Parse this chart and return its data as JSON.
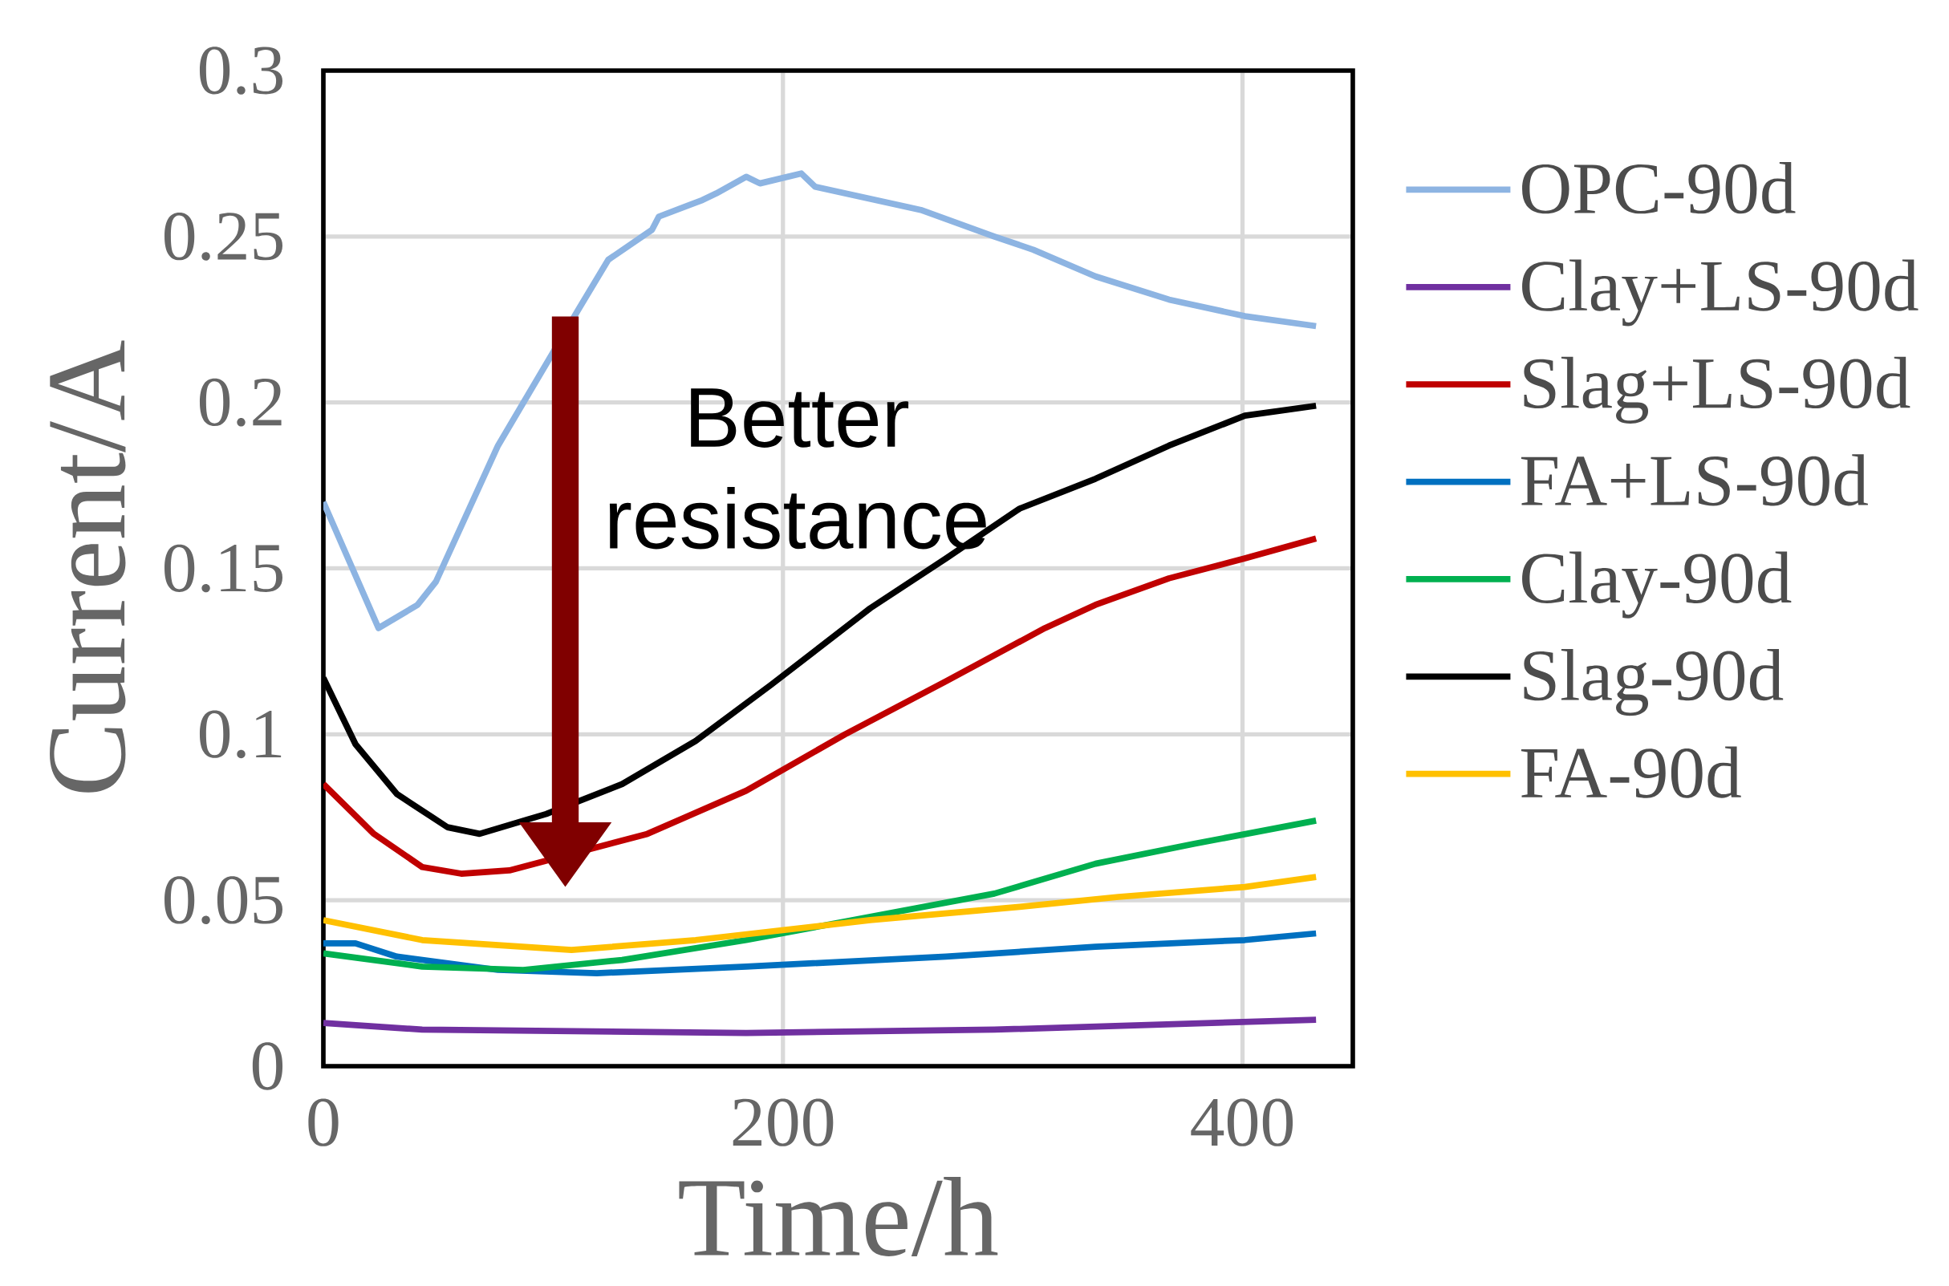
{
  "chart_data": {
    "type": "line",
    "xlabel": "Time/h",
    "ylabel": "Current/A",
    "xlim": [
      0,
      448
    ],
    "ylim": [
      0,
      0.3
    ],
    "xticks": [
      0,
      200,
      400
    ],
    "yticks": [
      0,
      0.05,
      0.1,
      0.15,
      0.2,
      0.25,
      0.3
    ],
    "grid": true,
    "legend": "right",
    "marker": "none",
    "line_style": "solid",
    "annotations": [
      "Better resistance"
    ],
    "series": [
      {
        "name": "OPC-90d",
        "color": "#8db4e2",
        "x": [
          0,
          24,
          41,
          49,
          76,
          111,
          124,
          143,
          146,
          165,
          171,
          184,
          190,
          208,
          214,
          260,
          292,
          309,
          336,
          368,
          401,
          432
        ],
        "values": [
          0.17,
          0.132,
          0.139,
          0.146,
          0.187,
          0.228,
          0.243,
          0.252,
          0.256,
          0.261,
          0.263,
          0.268,
          0.266,
          0.269,
          0.265,
          0.258,
          0.25,
          0.246,
          0.238,
          0.231,
          0.226,
          0.223
        ]
      },
      {
        "name": "Clay+LS-90d",
        "color": "#7030a0",
        "x": [
          0,
          43,
          184,
          292,
          432
        ],
        "values": [
          0.013,
          0.011,
          0.01,
          0.011,
          0.014
        ]
      },
      {
        "name": "Slag+LS-90d",
        "color": "#c00000",
        "x": [
          0,
          22,
          43,
          60,
          81,
          141,
          184,
          227,
          271,
          314,
          336,
          368,
          401,
          432
        ],
        "values": [
          0.085,
          0.07,
          0.06,
          0.058,
          0.059,
          0.07,
          0.083,
          0.1,
          0.116,
          0.132,
          0.139,
          0.147,
          0.153,
          0.159
        ]
      },
      {
        "name": "FA+LS-90d",
        "color": "#0070c0",
        "x": [
          0,
          14,
          32,
          76,
          119,
          184,
          271,
          336,
          401,
          432
        ],
        "values": [
          0.037,
          0.037,
          0.033,
          0.029,
          0.028,
          0.03,
          0.033,
          0.036,
          0.038,
          0.04
        ]
      },
      {
        "name": "Clay-90d",
        "color": "#00b050",
        "x": [
          0,
          43,
          87,
          130,
          184,
          238,
          292,
          336,
          379,
          432
        ],
        "values": [
          0.034,
          0.03,
          0.029,
          0.032,
          0.038,
          0.045,
          0.052,
          0.061,
          0.067,
          0.074
        ]
      },
      {
        "name": "Slag-90d",
        "color": "#000000",
        "x": [
          0,
          14,
          32,
          54,
          68,
          97,
          130,
          162,
          195,
          238,
          271,
          303,
          336,
          368,
          401,
          432
        ],
        "values": [
          0.117,
          0.097,
          0.082,
          0.072,
          0.07,
          0.076,
          0.085,
          0.098,
          0.115,
          0.138,
          0.153,
          0.168,
          0.177,
          0.187,
          0.196,
          0.199
        ]
      },
      {
        "name": "FA-90d",
        "color": "#ffc000",
        "x": [
          0,
          43,
          108,
          162,
          238,
          303,
          346,
          401,
          432
        ],
        "values": [
          0.044,
          0.038,
          0.035,
          0.038,
          0.044,
          0.048,
          0.051,
          0.054,
          0.057
        ]
      }
    ]
  }
}
